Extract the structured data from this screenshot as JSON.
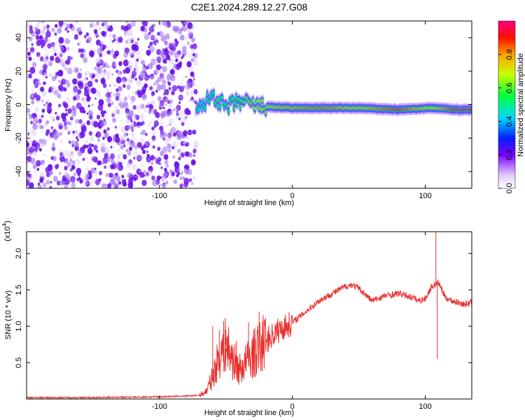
{
  "title": "C2E1.2024.289.12.27.G08",
  "chart_data": [
    {
      "type": "heatmap",
      "xlabel": "Height of straight line (km)",
      "ylabel": "Frequency (Hz)",
      "xlim": [
        -200,
        135
      ],
      "ylim": [
        -50,
        50
      ],
      "xticks": [
        -100,
        0,
        100
      ],
      "yticks": [
        -40,
        -20,
        0,
        20,
        40
      ],
      "colorbar": {
        "label": "Normalized spectral amplitude",
        "range": [
          0,
          1
        ],
        "ticks": [
          "0.0",
          "0.2",
          "0.4",
          "0.6",
          "0.8"
        ],
        "tick_values": [
          0.0,
          0.2,
          0.4,
          0.6,
          0.8
        ]
      },
      "noise_region_end_x": -72,
      "signal_track": [
        {
          "x": -72,
          "y": -4,
          "amp": 0.45
        },
        {
          "x": -60,
          "y": 6,
          "amp": 0.5
        },
        {
          "x": -50,
          "y": -2,
          "amp": 0.5
        },
        {
          "x": -40,
          "y": 2,
          "amp": 0.55
        },
        {
          "x": -25,
          "y": -1,
          "amp": 0.7
        },
        {
          "x": 0,
          "y": -2,
          "amp": 0.8
        },
        {
          "x": 25,
          "y": -2,
          "amp": 0.85
        },
        {
          "x": 50,
          "y": -2,
          "amp": 0.75
        },
        {
          "x": 80,
          "y": -3,
          "amp": 0.9
        },
        {
          "x": 105,
          "y": -2,
          "amp": 0.7
        },
        {
          "x": 125,
          "y": -3,
          "amp": 0.95
        },
        {
          "x": 135,
          "y": -3,
          "amp": 0.95
        }
      ]
    },
    {
      "type": "line",
      "xlabel": "Height of straight line (km)",
      "ylabel": "SNR (10 * v/v)",
      "y_multiplier": "(x10",
      "y_multiplier_exponent": "4",
      "y_multiplier_close": ")",
      "xlim": [
        -200,
        135
      ],
      "ylim": [
        0,
        2.3
      ],
      "xticks": [
        -100,
        0,
        100
      ],
      "yticks": [
        "0.5",
        "1.0",
        "1.5",
        "2.0"
      ],
      "ytick_values": [
        0.5,
        1.0,
        1.5,
        2.0
      ],
      "line_color": "#e8312f",
      "series": [
        {
          "x": [
            -200,
            -150,
            -100,
            -80,
            -70,
            -65,
            -60,
            -55,
            -50,
            -45,
            -40,
            -35,
            -30,
            -25,
            -20,
            -10,
            0,
            10,
            20,
            30,
            40,
            45,
            50,
            60,
            70,
            80,
            90,
            95,
            100,
            105,
            110,
            115,
            120,
            130,
            135
          ],
          "y": [
            0.02,
            0.02,
            0.03,
            0.04,
            0.05,
            0.1,
            0.3,
            0.6,
            0.75,
            0.55,
            0.4,
            0.5,
            0.6,
            0.7,
            0.8,
            0.95,
            1.05,
            1.2,
            1.35,
            1.45,
            1.55,
            1.57,
            1.52,
            1.35,
            1.42,
            1.45,
            1.4,
            1.35,
            1.38,
            1.55,
            1.6,
            1.4,
            1.35,
            1.3,
            1.33
          ],
          "spikes": [
            {
              "x": -60,
              "y": 1.0
            },
            {
              "x": -55,
              "y": 0.95
            },
            {
              "x": -50,
              "y": 0.95
            },
            {
              "x": -42,
              "y": 0.8
            },
            {
              "x": -33,
              "y": 1.05
            },
            {
              "x": -25,
              "y": 1.2
            },
            {
              "x": 108,
              "y": 2.3
            },
            {
              "x": 109,
              "y": 0.55
            }
          ]
        }
      ]
    }
  ]
}
